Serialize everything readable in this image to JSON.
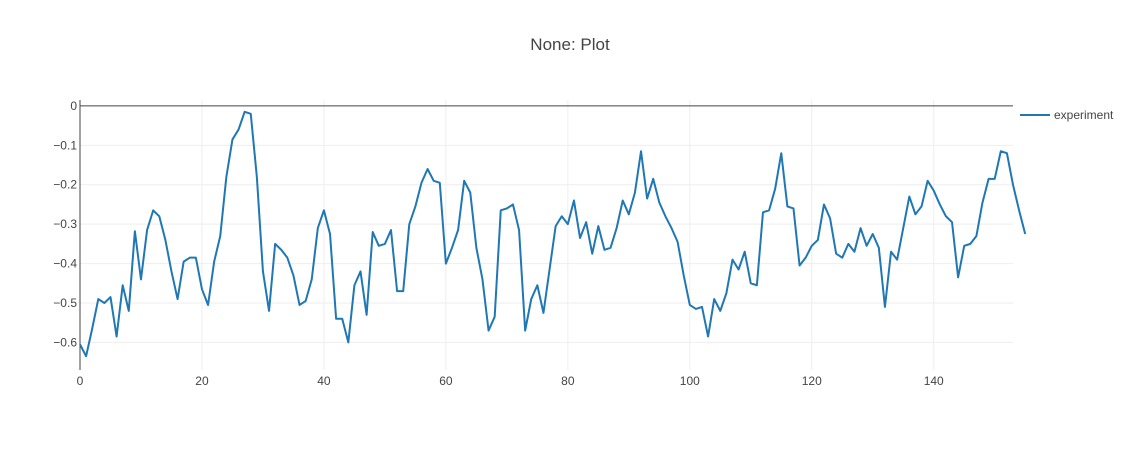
{
  "chart_data": {
    "type": "line",
    "title": "None: Plot",
    "xlabel": "",
    "ylabel": "",
    "xlim": [
      0,
      153
    ],
    "ylim": [
      -0.67,
      0.015
    ],
    "x_ticks": [
      0,
      20,
      40,
      60,
      80,
      100,
      120,
      140
    ],
    "y_ticks": [
      0,
      -0.1,
      -0.2,
      -0.3,
      -0.4,
      -0.5,
      -0.6
    ],
    "grid": true,
    "legend_position": "top-right",
    "series": [
      {
        "name": "experiment",
        "color": "#1f77b4",
        "values": [
          -0.605,
          -0.635,
          -0.565,
          -0.49,
          -0.5,
          -0.485,
          -0.585,
          -0.455,
          -0.52,
          -0.318,
          -0.44,
          -0.315,
          -0.265,
          -0.28,
          -0.34,
          -0.42,
          -0.49,
          -0.395,
          -0.385,
          -0.385,
          -0.465,
          -0.505,
          -0.395,
          -0.33,
          -0.18,
          -0.085,
          -0.06,
          -0.015,
          -0.02,
          -0.18,
          -0.42,
          -0.52,
          -0.35,
          -0.365,
          -0.385,
          -0.43,
          -0.505,
          -0.495,
          -0.44,
          -0.31,
          -0.265,
          -0.325,
          -0.54,
          -0.54,
          -0.6,
          -0.455,
          -0.42,
          -0.53,
          -0.32,
          -0.355,
          -0.35,
          -0.315,
          -0.47,
          -0.47,
          -0.3,
          -0.255,
          -0.195,
          -0.16,
          -0.19,
          -0.195,
          -0.4,
          -0.36,
          -0.315,
          -0.19,
          -0.22,
          -0.36,
          -0.44,
          -0.57,
          -0.535,
          -0.265,
          -0.26,
          -0.25,
          -0.315,
          -0.57,
          -0.49,
          -0.455,
          -0.525,
          -0.415,
          -0.305,
          -0.28,
          -0.3,
          -0.24,
          -0.335,
          -0.295,
          -0.375,
          -0.305,
          -0.365,
          -0.36,
          -0.31,
          -0.24,
          -0.275,
          -0.22,
          -0.115,
          -0.235,
          -0.185,
          -0.245,
          -0.28,
          -0.31,
          -0.345,
          -0.43,
          -0.505,
          -0.515,
          -0.51,
          -0.585,
          -0.49,
          -0.52,
          -0.475,
          -0.39,
          -0.415,
          -0.37,
          -0.45,
          -0.455,
          -0.27,
          -0.265,
          -0.21,
          -0.12,
          -0.255,
          -0.26,
          -0.405,
          -0.385,
          -0.355,
          -0.34,
          -0.25,
          -0.285,
          -0.375,
          -0.385,
          -0.35,
          -0.37,
          -0.31,
          -0.355,
          -0.325,
          -0.36,
          -0.51,
          -0.37,
          -0.39,
          -0.31,
          -0.23,
          -0.275,
          -0.255,
          -0.19,
          -0.215,
          -0.25,
          -0.28,
          -0.295,
          -0.435,
          -0.355,
          -0.35,
          -0.33,
          -0.245,
          -0.185,
          -0.185,
          -0.115,
          -0.12,
          -0.2,
          -0.265,
          -0.325
        ]
      }
    ]
  }
}
